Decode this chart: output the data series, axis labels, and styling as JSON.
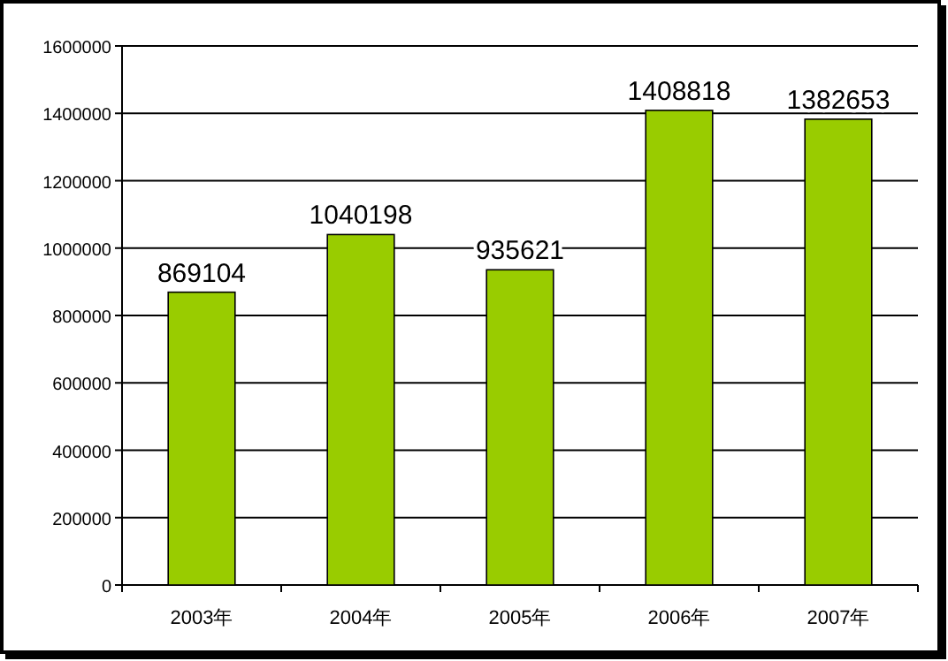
{
  "chart_data": {
    "type": "bar",
    "categories": [
      "2003年",
      "2004年",
      "2005年",
      "2006年",
      "2007年"
    ],
    "values": [
      869104,
      1040198,
      935621,
      1408818,
      1382653
    ],
    "color": "#99cc00",
    "ylim": [
      0,
      1600000
    ],
    "yticks": [
      0,
      200000,
      400000,
      600000,
      800000,
      1000000,
      1200000,
      1400000,
      1600000
    ],
    "grid": "y",
    "data_labels": true
  }
}
